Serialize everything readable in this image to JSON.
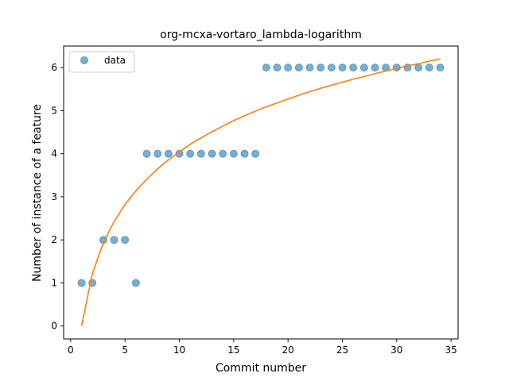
{
  "chart_data": {
    "type": "scatter",
    "title": "org-mcxa-vortaro_lambda-logarithm",
    "xlabel": "Commit number",
    "ylabel": "Number of instance of a feature",
    "xlim": [
      -0.65,
      35.65
    ],
    "ylim": [
      -0.3,
      6.5
    ],
    "xticks": [
      0,
      5,
      10,
      15,
      20,
      25,
      30,
      35
    ],
    "yticks": [
      0,
      1,
      2,
      3,
      4,
      5,
      6
    ],
    "grid": false,
    "legend": {
      "placement": "top-left",
      "entries": [
        "data"
      ]
    },
    "series": [
      {
        "name": "data",
        "kind": "scatter",
        "color": "#1f77b4",
        "x": [
          1,
          2,
          3,
          4,
          5,
          6,
          7,
          8,
          9,
          10,
          11,
          12,
          13,
          14,
          15,
          16,
          17,
          18,
          19,
          20,
          21,
          22,
          23,
          24,
          25,
          26,
          27,
          28,
          29,
          30,
          31,
          32,
          33,
          34
        ],
        "y": [
          1,
          1,
          2,
          2,
          2,
          1,
          4,
          4,
          4,
          4,
          4,
          4,
          4,
          4,
          4,
          4,
          4,
          6,
          6,
          6,
          6,
          6,
          6,
          6,
          6,
          6,
          6,
          6,
          6,
          6,
          6,
          6,
          6,
          6
        ]
      },
      {
        "kind": "line",
        "color": "#ff7f0e",
        "x": [
          1,
          2,
          3,
          4,
          5,
          6,
          7,
          8,
          9,
          10,
          11,
          12,
          13,
          14,
          15,
          16,
          17,
          18,
          19,
          20,
          21,
          22,
          23,
          24,
          25,
          26,
          27,
          28,
          29,
          30,
          31,
          32,
          33,
          34
        ],
        "y": [
          0.0,
          1.22,
          1.93,
          2.43,
          2.82,
          3.14,
          3.41,
          3.65,
          3.86,
          4.04,
          4.22,
          4.37,
          4.51,
          4.64,
          4.77,
          4.88,
          4.99,
          5.09,
          5.18,
          5.27,
          5.36,
          5.44,
          5.52,
          5.59,
          5.66,
          5.73,
          5.79,
          5.86,
          5.92,
          5.98,
          6.04,
          6.09,
          6.15,
          6.2
        ]
      }
    ]
  }
}
